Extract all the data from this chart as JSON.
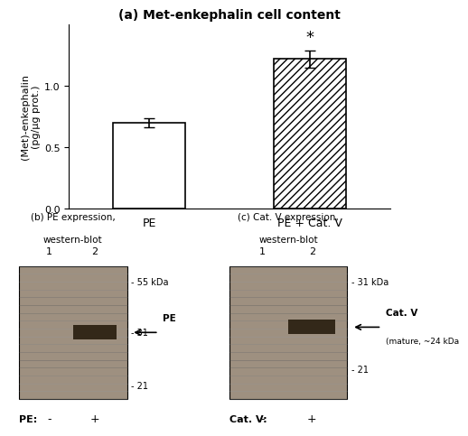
{
  "title": "(a) Met-enkephalin cell content",
  "bar_labels": [
    "PE",
    "PE + Cat. V"
  ],
  "bar_values": [
    0.7,
    1.22
  ],
  "bar_errors": [
    0.035,
    0.07
  ],
  "bar_colors": [
    "white",
    "white"
  ],
  "bar_hatches": [
    null,
    "////"
  ],
  "ylabel": "(Met)-enkephalin\n(pg/µg prot.)",
  "ylim": [
    0.0,
    1.5
  ],
  "yticks": [
    0.0,
    0.5,
    1.0
  ],
  "significance_star": "*",
  "panel_b_title": "(b) PE expression,\nwestern-blot",
  "panel_c_title": "(c) Cat. V expression,\nwestern-blot",
  "panel_b_lane_labels": [
    "1",
    "2"
  ],
  "panel_c_lane_labels": [
    "1",
    "2"
  ],
  "panel_b_markers": [
    [
      "- 55 kDa",
      0.88
    ],
    [
      "- 31",
      0.5
    ],
    [
      "- 21",
      0.1
    ]
  ],
  "panel_c_markers": [
    [
      "- 31 kDa",
      0.88
    ],
    [
      "- 21",
      0.22
    ]
  ],
  "panel_b_arrow_label": "PE",
  "panel_c_arrow_label": "Cat. V",
  "panel_c_arrow_sublabel": "(mature, ~24 kDa",
  "panel_b_xlabel": [
    "PE:",
    "-",
    "+"
  ],
  "panel_c_xlabel": [
    "Cat. V:",
    "-",
    "+"
  ],
  "bg_color": "#ffffff",
  "bar_edge_color": "#000000",
  "gel_bg_color": "#9e9080",
  "gel_band_color": "#2a1f10"
}
